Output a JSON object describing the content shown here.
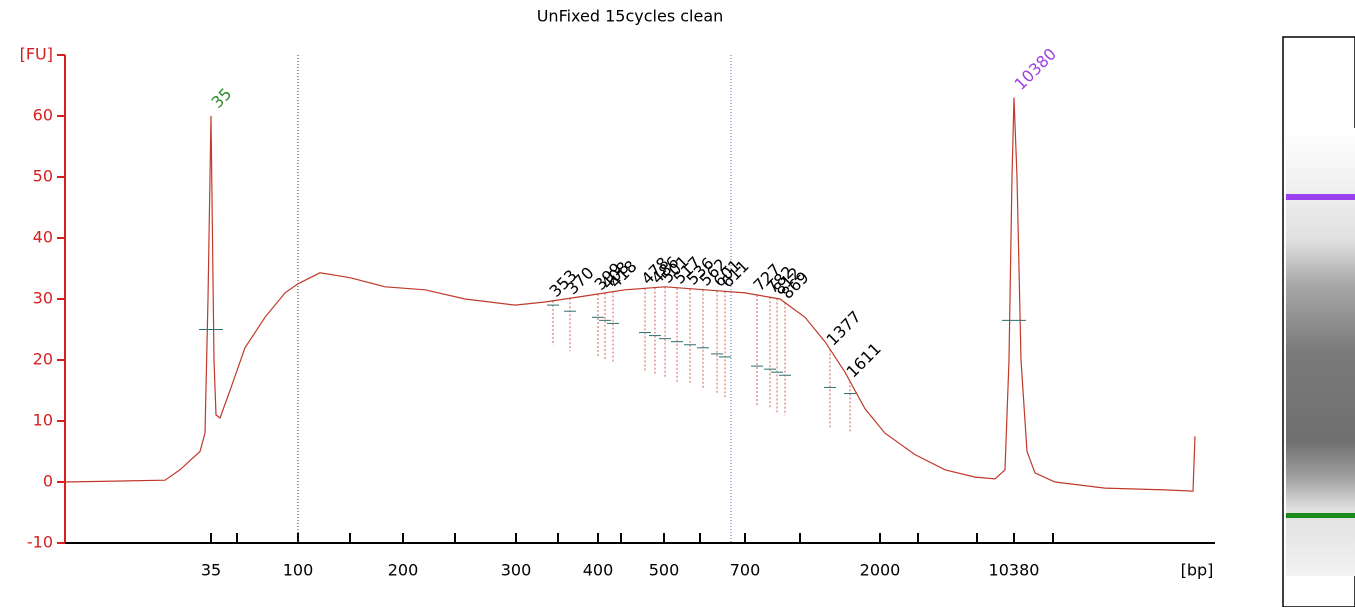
{
  "chart_data": {
    "type": "line",
    "title": "UnFixed 15cycles clean",
    "x_unit_label": "[bp]",
    "color": "#c0392b",
    "axis_color": "#d62020",
    "x": [
      0,
      100,
      115,
      125,
      135,
      140,
      143,
      146,
      149,
      151,
      155,
      165,
      180,
      200,
      220,
      233,
      255,
      285,
      320,
      360,
      400,
      450,
      480,
      520,
      560,
      600,
      640,
      680,
      715,
      740,
      760,
      780,
      800,
      820,
      850,
      880,
      910,
      930,
      940,
      944,
      947,
      949,
      952,
      956,
      962,
      970,
      990,
      1040,
      1100,
      1128,
      1130
    ],
    "values": [
      0,
      0.3,
      2,
      3.5,
      5,
      8,
      30,
      60,
      20,
      11,
      10.5,
      15,
      22,
      27,
      31,
      32.5,
      34.3,
      33.5,
      32,
      31.5,
      30,
      29,
      29.5,
      30.5,
      31.5,
      32,
      31.5,
      31,
      30,
      27,
      23,
      18,
      12,
      8,
      4.5,
      2,
      0.8,
      0.5,
      2,
      20,
      50,
      63,
      50,
      20,
      5,
      1.5,
      0,
      -1,
      -1.3,
      -1.5,
      7.5
    ],
    "xlim": [
      0,
      1130
    ],
    "ylim": [
      -10,
      70
    ],
    "yticks": [
      -10,
      0,
      10,
      20,
      30,
      40,
      50,
      60,
      {
        "value": 70,
        "label": "[FU]"
      }
    ],
    "xticks": [
      {
        "value": 146,
        "label": "35"
      },
      {
        "value": 233,
        "label": "100"
      },
      {
        "value": 338,
        "label": "200"
      },
      {
        "value": 451,
        "label": "300"
      },
      {
        "value": 533,
        "label": "400"
      },
      {
        "value": 599,
        "label": "500"
      },
      {
        "value": 680,
        "label": "700"
      },
      {
        "value": 815,
        "label": "2000"
      },
      {
        "value": 949,
        "label": "10380"
      }
    ],
    "xminor_ticks": [
      172,
      285,
      390,
      493,
      556,
      635,
      735,
      853,
      912,
      988
    ],
    "markers": [
      {
        "label": "35",
        "x": 146,
        "value": 60,
        "color": "#2e8b2e"
      },
      {
        "label": "10380",
        "x": 949,
        "value": 63,
        "color": "#a040e0"
      }
    ],
    "peaks": [
      {
        "label": "353",
        "x": 488,
        "value": 29
      },
      {
        "label": "370",
        "x": 505,
        "value": 28
      },
      {
        "label": "399",
        "x": 533,
        "value": 27
      },
      {
        "label": "408",
        "x": 540,
        "value": 26.5
      },
      {
        "label": "418",
        "x": 548,
        "value": 26
      },
      {
        "label": "478",
        "x": 580,
        "value": 24.5
      },
      {
        "label": "486",
        "x": 590,
        "value": 24
      },
      {
        "label": "501",
        "x": 600,
        "value": 23.5
      },
      {
        "label": "517",
        "x": 612,
        "value": 23
      },
      {
        "label": "536",
        "x": 625,
        "value": 22.5
      },
      {
        "label": "562",
        "x": 638,
        "value": 22
      },
      {
        "label": "601",
        "x": 652,
        "value": 21
      },
      {
        "label": "611",
        "x": 660,
        "value": 20.5
      },
      {
        "label": "727",
        "x": 692,
        "value": 19
      },
      {
        "label": "782",
        "x": 705,
        "value": 18.5
      },
      {
        "label": "812",
        "x": 712,
        "value": 18
      },
      {
        "label": "869",
        "x": 720,
        "value": 17.5
      },
      {
        "label": "1377",
        "x": 765,
        "value": 15.5
      },
      {
        "label": "1611",
        "x": 785,
        "value": 14.5
      }
    ],
    "ref_lines": [
      {
        "x": 233,
        "color": "#333333"
      },
      {
        "x": 666,
        "color": "#6060c0"
      }
    ]
  }
}
